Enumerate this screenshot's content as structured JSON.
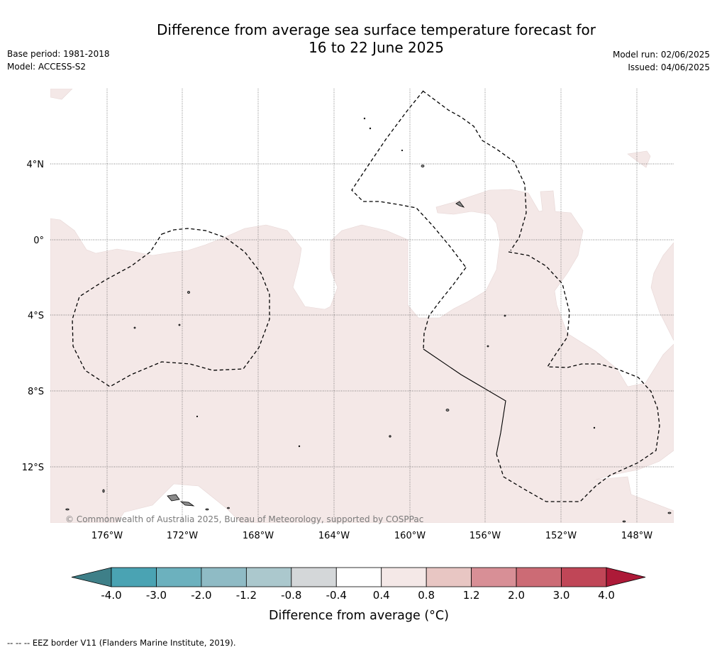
{
  "header": {
    "title_line1": "Difference from average sea surface temperature forecast for",
    "title_line2": "16 to 22 June 2025",
    "base_period": "Base period: 1981-2018",
    "model": "Model: ACCESS-S2",
    "model_run": "Model run: 02/06/2025",
    "issued": "Issued: 04/06/2025"
  },
  "map": {
    "lat_labels": [
      "4°N",
      "0°",
      "4°S",
      "8°S",
      "12°S"
    ],
    "lon_labels": [
      "176°W",
      "172°W",
      "168°W",
      "164°W",
      "160°W",
      "156°W",
      "152°W",
      "148°W"
    ],
    "copyright": "© Commonwealth of Australia 2025, Bureau of Meteorology, supported by COSPPac",
    "colors": {
      "land": "#8a8a8a",
      "band_0_4_to_0_8": "#f4e8e7",
      "border": "#000000"
    }
  },
  "colorbar": {
    "title": "Difference from average (°C)",
    "ticks": [
      "-4.0",
      "-3.0",
      "-2.0",
      "-1.2",
      "-0.8",
      "-0.4",
      "0.4",
      "0.8",
      "1.2",
      "2.0",
      "3.0",
      "4.0"
    ],
    "colors": [
      "#3e7f88",
      "#4aa3b3",
      "#6cb1be",
      "#8fbbc5",
      "#abc8cd",
      "#d4d7d9",
      "#ffffff",
      "#f4e8e7",
      "#e8c6c3",
      "#d88f96",
      "#cc6b75",
      "#c04657",
      "#ad1a38"
    ]
  },
  "footer": {
    "legend": "--  --  -- EEZ border V11 (Flanders Marine Institute, 2019)."
  }
}
